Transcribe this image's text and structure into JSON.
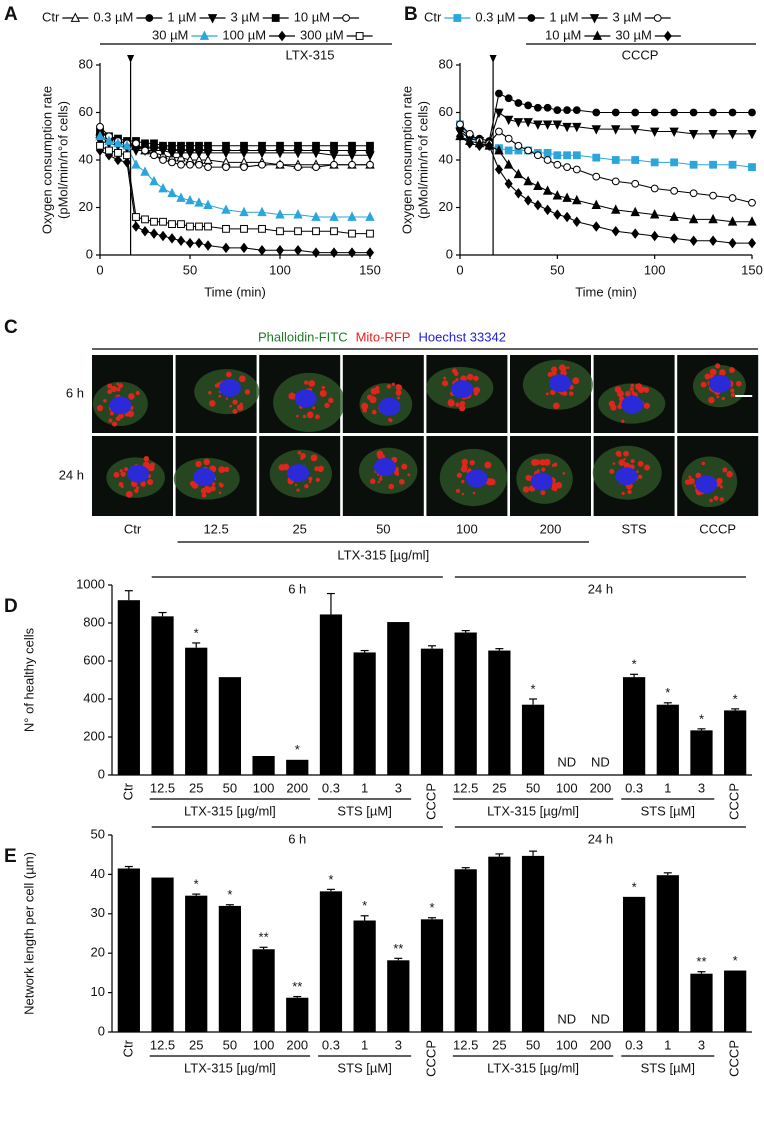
{
  "chart_data": [
    {
      "type": "line",
      "panel_label": "A",
      "treatment_label": "LTX-315",
      "xlabel": "Time (min)",
      "ylabel": [
        "Oxygen consumption rate",
        "(pMol/min/n°of cells)"
      ],
      "x": [
        0,
        5,
        10,
        15,
        20,
        25,
        30,
        35,
        40,
        45,
        50,
        55,
        60,
        70,
        80,
        90,
        100,
        110,
        120,
        130,
        140,
        150
      ],
      "xlim": [
        0,
        150
      ],
      "xticks": [
        0,
        50,
        100,
        150
      ],
      "ylim": [
        0,
        80
      ],
      "yticks": [
        0,
        20,
        40,
        60,
        80
      ],
      "injection_time": 17,
      "series": [
        {
          "name": "Ctr",
          "color": "#000000",
          "marker": "triangle-open",
          "values": [
            52,
            49,
            48,
            47,
            46,
            44,
            43,
            42,
            41,
            41,
            40,
            40,
            40,
            39,
            39,
            39,
            38,
            38,
            38,
            38,
            38,
            38
          ]
        },
        {
          "name": "0.3 µM",
          "color": "#000000",
          "marker": "circle",
          "values": [
            50,
            48,
            47,
            46,
            46,
            45,
            45,
            45,
            44,
            44,
            44,
            44,
            44,
            44,
            44,
            44,
            44,
            44,
            44,
            44,
            44,
            44
          ]
        },
        {
          "name": "1 µM",
          "color": "#000000",
          "marker": "triangle-down",
          "values": [
            48,
            47,
            46,
            45,
            44,
            44,
            44,
            44,
            43,
            43,
            43,
            43,
            43,
            43,
            43,
            43,
            43,
            43,
            43,
            42,
            42,
            42
          ]
        },
        {
          "name": "3 µM",
          "color": "#000000",
          "marker": "square",
          "values": [
            52,
            50,
            49,
            48,
            48,
            47,
            47,
            46,
            46,
            46,
            46,
            46,
            46,
            46,
            46,
            46,
            46,
            46,
            46,
            46,
            46,
            46
          ]
        },
        {
          "name": "10 µM",
          "color": "#000000",
          "marker": "circle-open",
          "values": [
            54,
            50,
            48,
            47,
            47,
            44,
            42,
            40,
            39,
            38,
            38,
            38,
            37,
            37,
            37,
            38,
            38,
            37,
            37,
            38,
            38,
            38
          ]
        },
        {
          "name": "30 µM",
          "color": "#2aa6dd",
          "marker": "triangle",
          "values": [
            50,
            48,
            47,
            46,
            38,
            35,
            31,
            28,
            26,
            24,
            23,
            22,
            21,
            19,
            18,
            18,
            17,
            17,
            16,
            16,
            16,
            16
          ]
        },
        {
          "name": "100 µM",
          "color": "#000000",
          "marker": "diamond",
          "values": [
            44,
            42,
            40,
            39,
            12,
            10,
            9,
            8,
            7,
            6,
            5,
            5,
            4,
            3,
            3,
            2,
            2,
            2,
            1,
            1,
            1,
            1
          ]
        },
        {
          "name": "300 µM",
          "color": "#000000",
          "marker": "square-open",
          "values": [
            46,
            44,
            43,
            42,
            16,
            15,
            14,
            14,
            13,
            13,
            12,
            12,
            12,
            11,
            11,
            11,
            10,
            10,
            10,
            10,
            9,
            9
          ]
        }
      ]
    },
    {
      "type": "line",
      "panel_label": "B",
      "treatment_label": "CCCP",
      "xlabel": "Time (min)",
      "ylabel": [
        "Oxygen consumption rate",
        "(pMol/min/n°of cells)"
      ],
      "x": [
        0,
        5,
        10,
        15,
        20,
        25,
        30,
        35,
        40,
        45,
        50,
        55,
        60,
        70,
        80,
        90,
        100,
        110,
        120,
        130,
        140,
        150
      ],
      "xlim": [
        0,
        150
      ],
      "xticks": [
        0,
        50,
        100,
        150
      ],
      "ylim": [
        0,
        80
      ],
      "yticks": [
        0,
        20,
        40,
        60,
        80
      ],
      "injection_time": 17,
      "series": [
        {
          "name": "Ctr",
          "color": "#2aa6dd",
          "marker": "square",
          "values": [
            55,
            50,
            48,
            46,
            45,
            44,
            44,
            44,
            43,
            43,
            42,
            42,
            42,
            41,
            40,
            40,
            39,
            39,
            38,
            38,
            38,
            37
          ]
        },
        {
          "name": "0.3 µM",
          "color": "#000000",
          "marker": "circle",
          "values": [
            53,
            50,
            49,
            48,
            68,
            66,
            64,
            63,
            62,
            62,
            61,
            61,
            61,
            60,
            60,
            60,
            60,
            60,
            60,
            60,
            60,
            60
          ]
        },
        {
          "name": "1 µM",
          "color": "#000000",
          "marker": "triangle-down",
          "values": [
            52,
            49,
            48,
            47,
            60,
            57,
            56,
            56,
            55,
            55,
            55,
            54,
            54,
            53,
            53,
            53,
            52,
            52,
            51,
            51,
            51,
            51
          ]
        },
        {
          "name": "3 µM",
          "color": "#000000",
          "marker": "circle-open",
          "values": [
            55,
            51,
            48,
            47,
            52,
            49,
            46,
            44,
            42,
            40,
            38,
            37,
            36,
            33,
            31,
            30,
            28,
            27,
            26,
            25,
            24,
            22
          ]
        },
        {
          "name": "10 µM",
          "color": "#000000",
          "marker": "triangle",
          "values": [
            50,
            48,
            47,
            46,
            44,
            38,
            34,
            31,
            29,
            27,
            25,
            24,
            23,
            21,
            19,
            18,
            17,
            16,
            15,
            15,
            14,
            14
          ]
        },
        {
          "name": "30 µM",
          "color": "#000000",
          "marker": "diamond",
          "values": [
            50,
            47,
            46,
            46,
            36,
            30,
            26,
            23,
            21,
            19,
            17,
            16,
            14,
            12,
            10,
            9,
            8,
            7,
            6,
            6,
            5,
            5
          ]
        }
      ]
    },
    {
      "type": "bar",
      "panel_label": "D",
      "ylabel": "N° of healthy cells",
      "color": "#000000",
      "categories": [
        "Ctr",
        "12.5",
        "25",
        "50",
        "100",
        "200",
        "0.3",
        "1",
        "3",
        "CCCP",
        "12.5",
        "25",
        "50",
        "100",
        "200",
        "0.3",
        "1",
        "3",
        "CCCP"
      ],
      "values": [
        920,
        835,
        670,
        515,
        100,
        80,
        845,
        645,
        805,
        665,
        750,
        655,
        370,
        null,
        null,
        515,
        370,
        235,
        340
      ],
      "errors": [
        50,
        20,
        25,
        null,
        null,
        null,
        110,
        10,
        null,
        15,
        10,
        10,
        30,
        null,
        null,
        15,
        10,
        8,
        8
      ],
      "significance": [
        null,
        null,
        "*",
        null,
        null,
        "*",
        null,
        null,
        null,
        null,
        null,
        null,
        "*",
        "ND",
        "ND",
        "*",
        "*",
        "*",
        "*"
      ],
      "ylim": [
        0,
        1000
      ],
      "yticks": [
        0,
        200,
        400,
        600,
        800,
        1000
      ],
      "time_groups": [
        {
          "label": "6 h",
          "from": 1,
          "to": 9
        },
        {
          "label": "24 h",
          "from": 10,
          "to": 18
        }
      ],
      "treatment_groups": [
        {
          "label": "LTX-315 [µg/ml]",
          "from": 1,
          "to": 5
        },
        {
          "label": "STS [µM]",
          "from": 6,
          "to": 8
        },
        {
          "label": "LTX-315 [µg/ml]",
          "from": 10,
          "to": 14
        },
        {
          "label": "STS [µM]",
          "from": 15,
          "to": 17
        }
      ]
    },
    {
      "type": "bar",
      "panel_label": "E",
      "ylabel": "Network length per cell (µm)",
      "color": "#000000",
      "categories": [
        "Ctr",
        "12.5",
        "25",
        "50",
        "100",
        "200",
        "0.3",
        "1",
        "3",
        "CCCP",
        "12.5",
        "25",
        "50",
        "100",
        "200",
        "0.3",
        "1",
        "3",
        "CCCP"
      ],
      "values": [
        41.5,
        39.2,
        34.6,
        32,
        21,
        8.7,
        35.7,
        28.3,
        18.2,
        28.6,
        41.3,
        44.5,
        44.7,
        null,
        null,
        34.3,
        39.8,
        14.8,
        15.6
      ],
      "errors": [
        0.5,
        null,
        0.4,
        0.3,
        0.5,
        0.3,
        0.5,
        1.2,
        0.5,
        0.4,
        0.4,
        0.7,
        1.2,
        null,
        null,
        null,
        0.6,
        0.5,
        null
      ],
      "significance": [
        null,
        null,
        "*",
        "*",
        "**",
        "**",
        "*",
        "*",
        "**",
        "*",
        null,
        null,
        null,
        "ND",
        "ND",
        "*",
        null,
        "**",
        "*"
      ],
      "ylim": [
        0,
        50
      ],
      "yticks": [
        0,
        10,
        20,
        30,
        40,
        50
      ],
      "time_groups": [
        {
          "label": "6 h",
          "from": 1,
          "to": 9
        },
        {
          "label": "24 h",
          "from": 10,
          "to": 18
        }
      ],
      "treatment_groups": [
        {
          "label": "LTX-315 [µg/ml]",
          "from": 1,
          "to": 5
        },
        {
          "label": "STS [µM]",
          "from": 6,
          "to": 8
        },
        {
          "label": "LTX-315 [µg/ml]",
          "from": 10,
          "to": 14
        },
        {
          "label": "STS [µM]",
          "from": 15,
          "to": 17
        }
      ]
    }
  ],
  "image_panel": {
    "panel_label": "C",
    "stains": [
      {
        "label": "Phalloidin-FITC",
        "color": "#1f7a2a"
      },
      {
        "label": "Mito-RFP",
        "color": "#e8201e"
      },
      {
        "label": "Hoechst 33342",
        "color": "#2020d8"
      }
    ],
    "rows": [
      "6 h",
      "24 h"
    ],
    "columns": [
      "Ctr",
      "12.5",
      "25",
      "50",
      "100",
      "200",
      "STS",
      "CCCP"
    ],
    "column_group": {
      "label": "LTX-315 [µg/ml]",
      "from": 1,
      "to": 5
    }
  }
}
